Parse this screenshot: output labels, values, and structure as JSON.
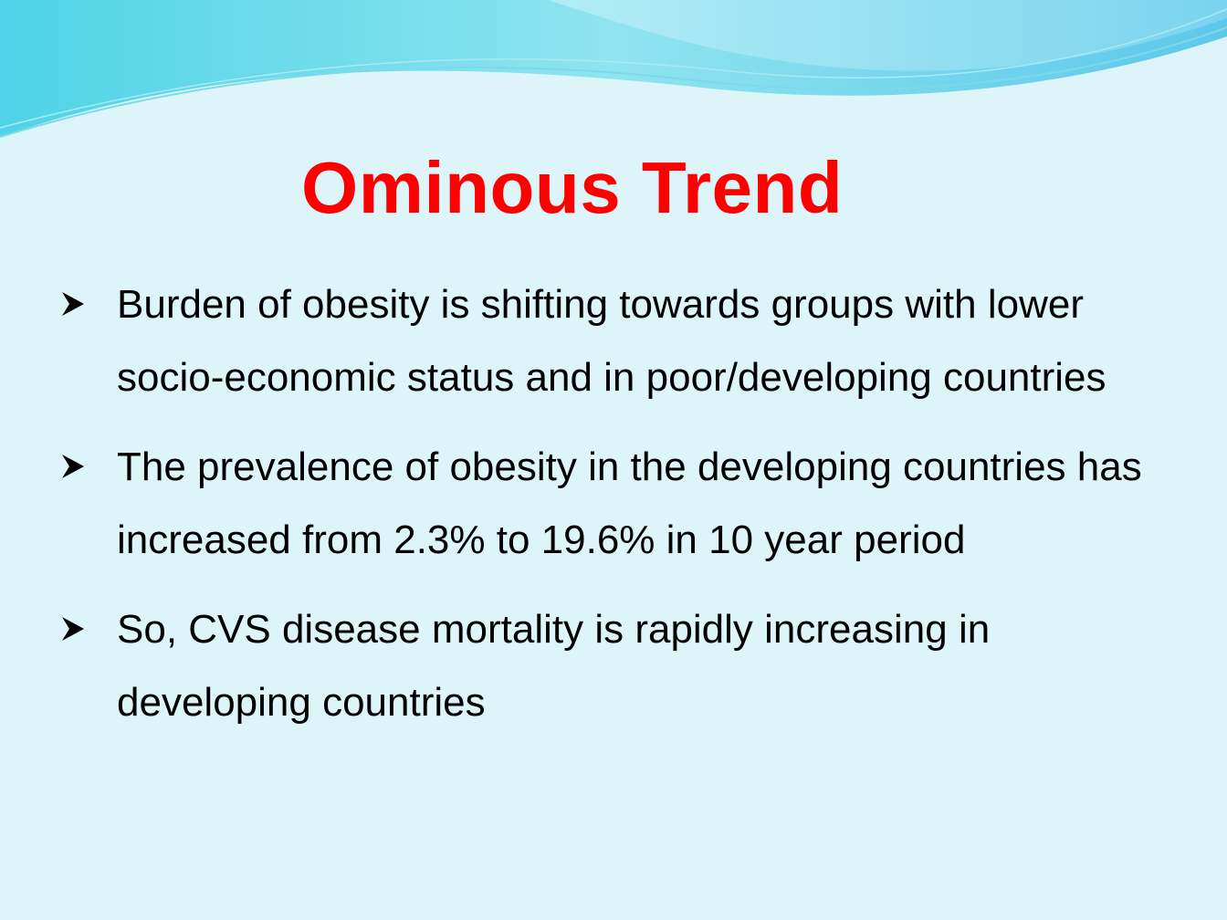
{
  "slide": {
    "title": "Ominous Trend",
    "title_color": "#ff0000",
    "background_color": "#ddf5f9",
    "bullet_icon": "arrowhead-bullet-icon",
    "bullets": [
      "Burden of obesity is shifting towards groups with lower socio-economic status and in poor/developing countries",
      "The prevalence of obesity in the developing countries has increased from 2.3% to 19.6% in 10 year period",
      "So, CVS disease mortality is rapidly increasing in developing countries"
    ]
  }
}
